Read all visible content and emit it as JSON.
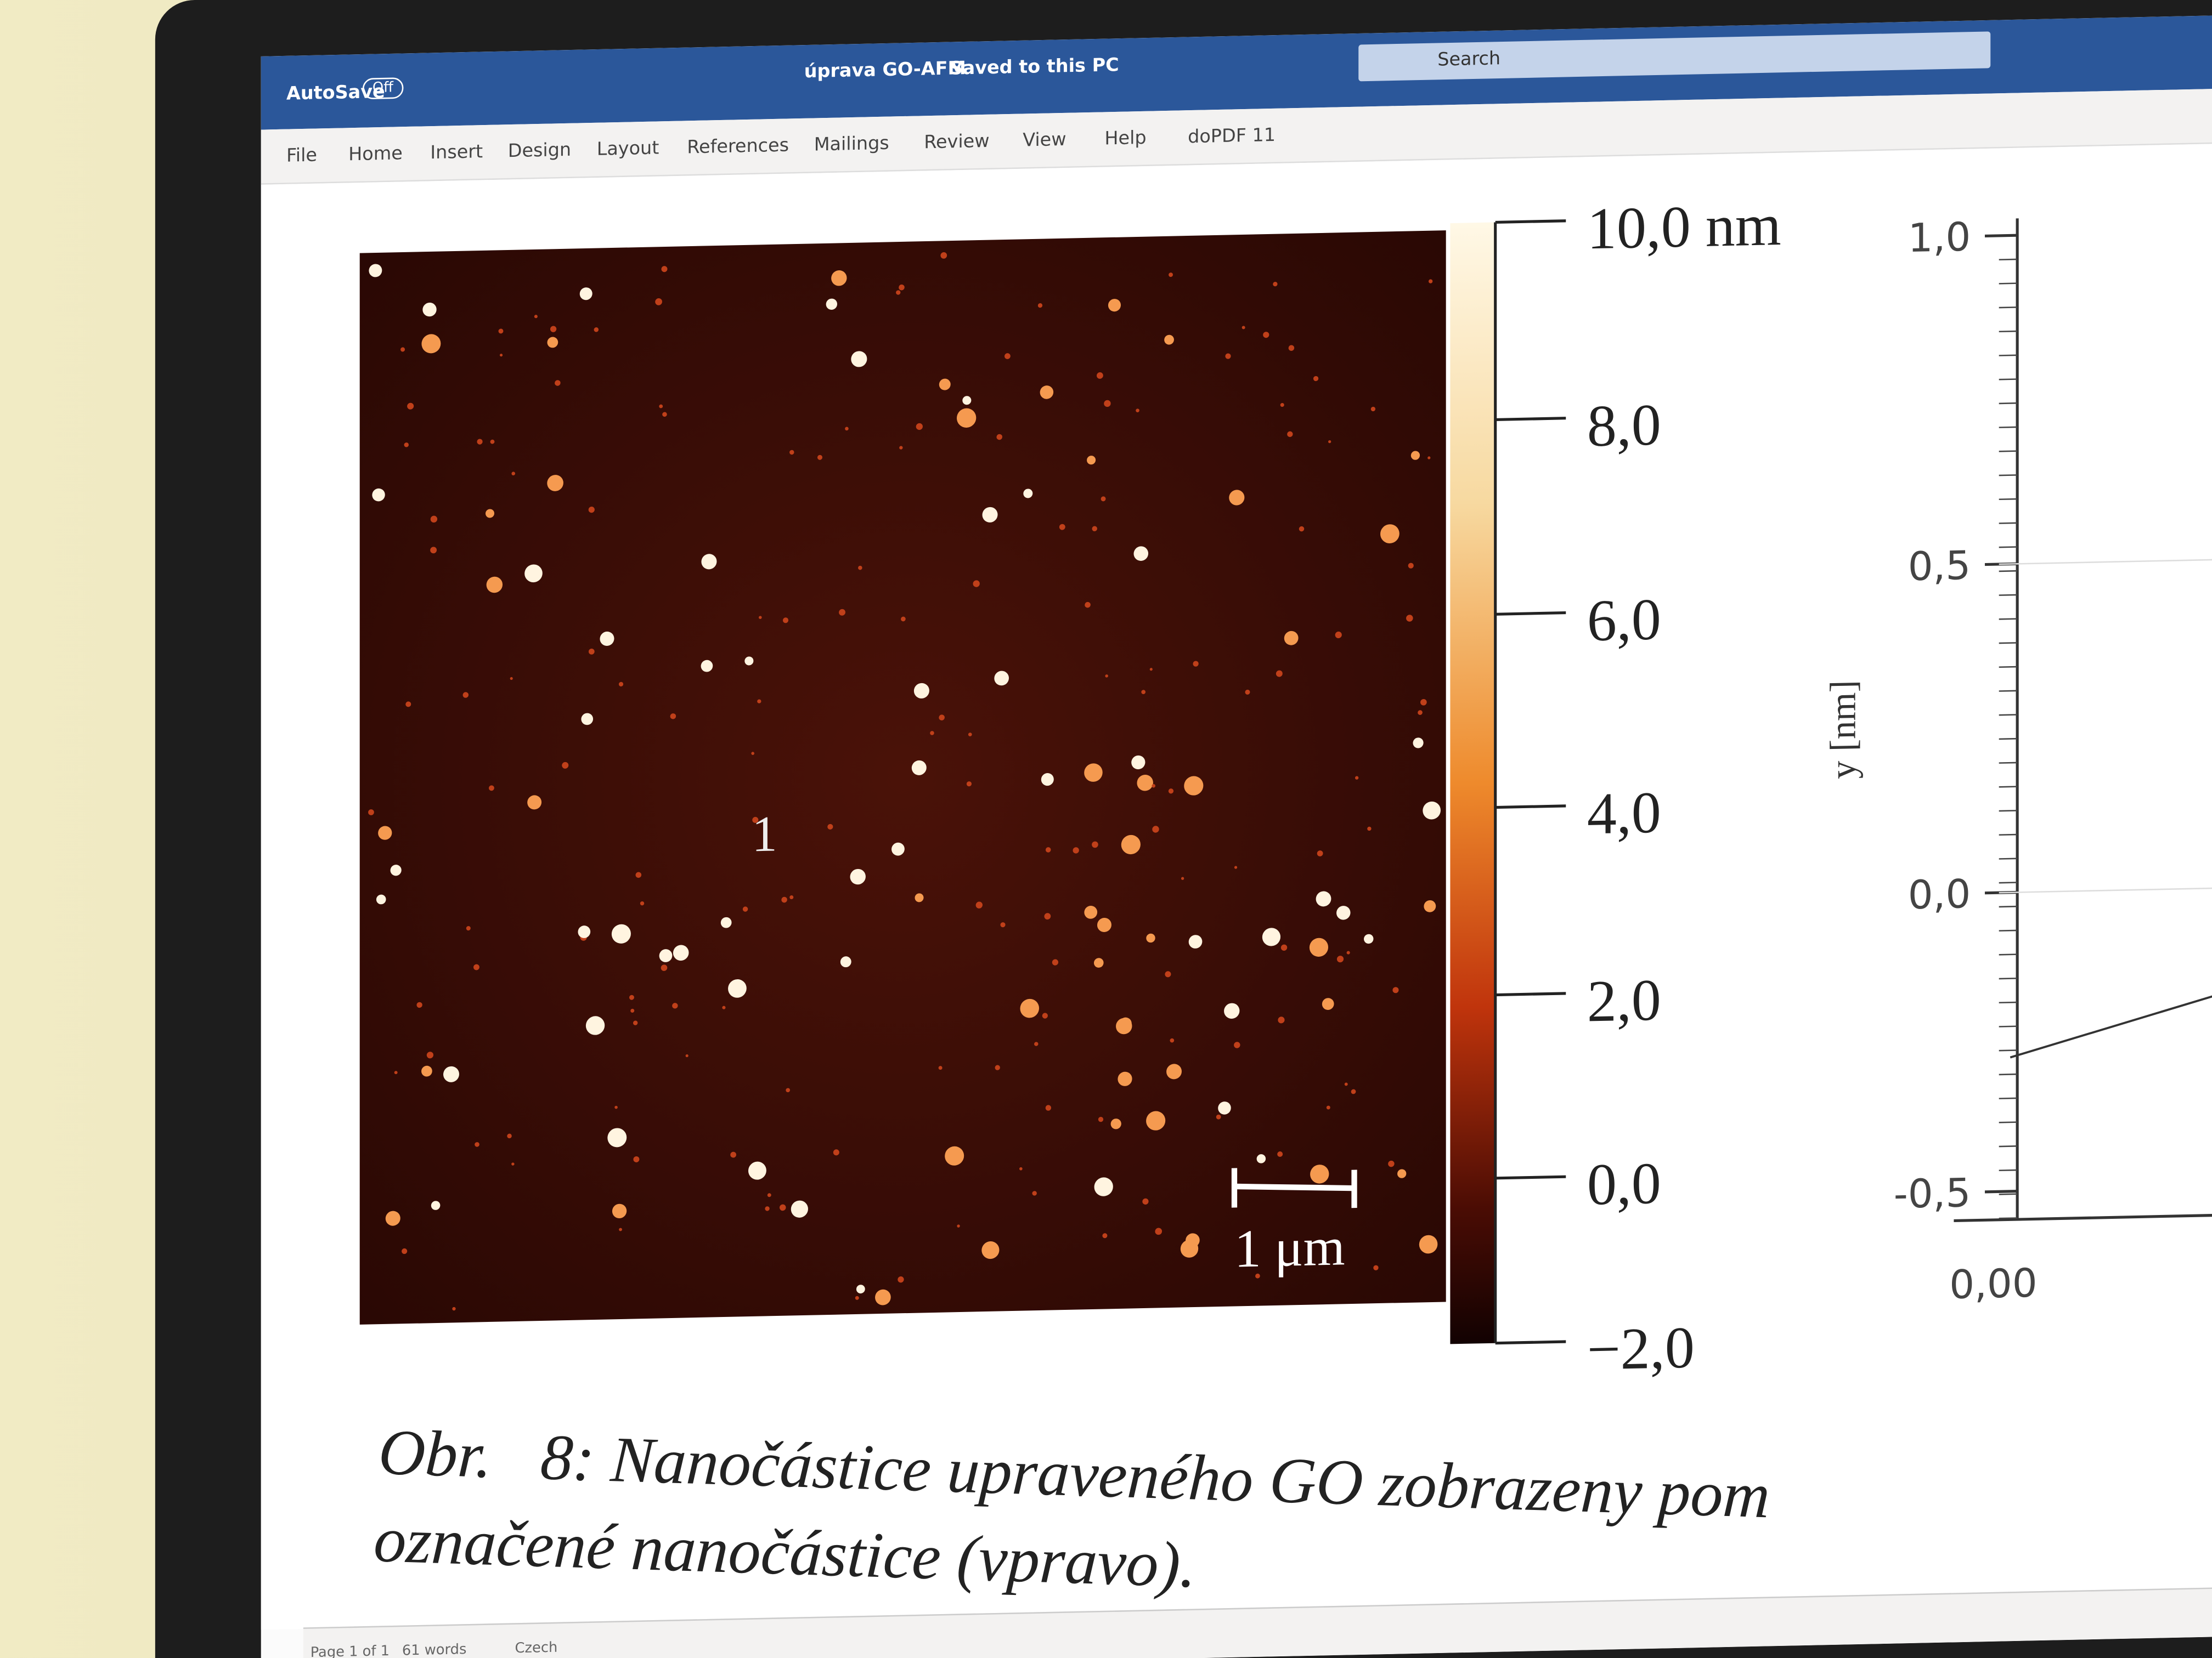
{
  "title_bar": {
    "autosave": "AutoSave",
    "toggle": "Off",
    "document": "úprava GO-AFM",
    "saved": "Saved to this PC",
    "search": "Search"
  },
  "ribbon_tabs": [
    "File",
    "Home",
    "Insert",
    "Design",
    "Layout",
    "References",
    "Mailings",
    "Review",
    "View",
    "Help",
    "doPDF 11"
  ],
  "figure": {
    "colorbar_labels": [
      "10,0 nm",
      "8,0",
      "6,0",
      "4,0",
      "2,0",
      "0,0",
      "−2,0"
    ],
    "marker": "1",
    "scale_bar": "1 μm",
    "plot": {
      "y_label": "y [nm]",
      "y_labels": [
        "1,0",
        "0,5",
        "0,0",
        "-0,5"
      ],
      "x_labels": [
        "0,00"
      ]
    }
  },
  "caption": [
    "Obr.   8: Nanočástice upraveného GO zobrazeny pom",
    "označené nanočástice (vpravo)."
  ],
  "status_bar": {
    "page": "Page 1 of 1",
    "words": "61 words",
    "language": "Czech"
  }
}
